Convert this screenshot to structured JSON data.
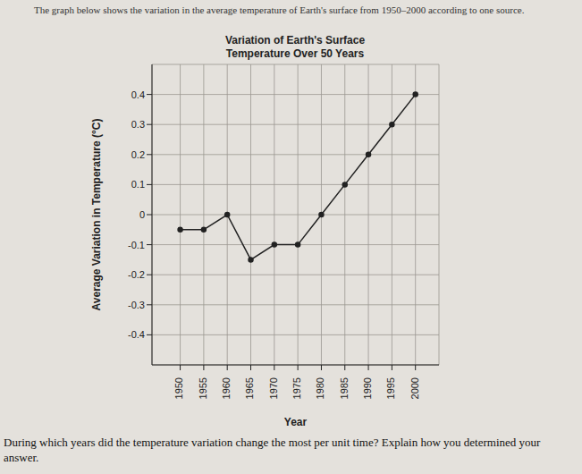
{
  "chart_data": {
    "type": "line",
    "title": "Variation of Earth's Surface Temperature Over 50 Years",
    "annotations": [
      "The graph below shows the variation in the average temperature of Earth's surface from 1950–2000 according to one source.",
      "During which years did the temperature variation change the most per unit time? Explain how you determined your answer."
    ],
    "x_label": "Year",
    "y_label": "Average Variation in Temperature (°C)",
    "x": [
      1950,
      1955,
      1960,
      1965,
      1970,
      1975,
      1980,
      1985,
      1990,
      1995,
      2000
    ],
    "series": [
      {
        "name": "Average Variation in Temperature",
        "color": "#222222",
        "marker": "circle",
        "line_style": "solid",
        "values": [
          -0.05,
          -0.05,
          0.0,
          -0.15,
          -0.1,
          -0.1,
          0.0,
          0.1,
          0.2,
          0.3,
          0.4
        ]
      }
    ],
    "xlim": [
      1944,
      2005
    ],
    "xticks": [
      1950,
      1955,
      1960,
      1965,
      1970,
      1975,
      1980,
      1985,
      1990,
      1995,
      2000
    ],
    "ylim": [
      -0.5,
      0.5
    ],
    "yticks": [
      -0.4,
      -0.3,
      -0.2,
      -0.1,
      0,
      0.1,
      0.2,
      0.3,
      0.4
    ],
    "grid": true
  }
}
